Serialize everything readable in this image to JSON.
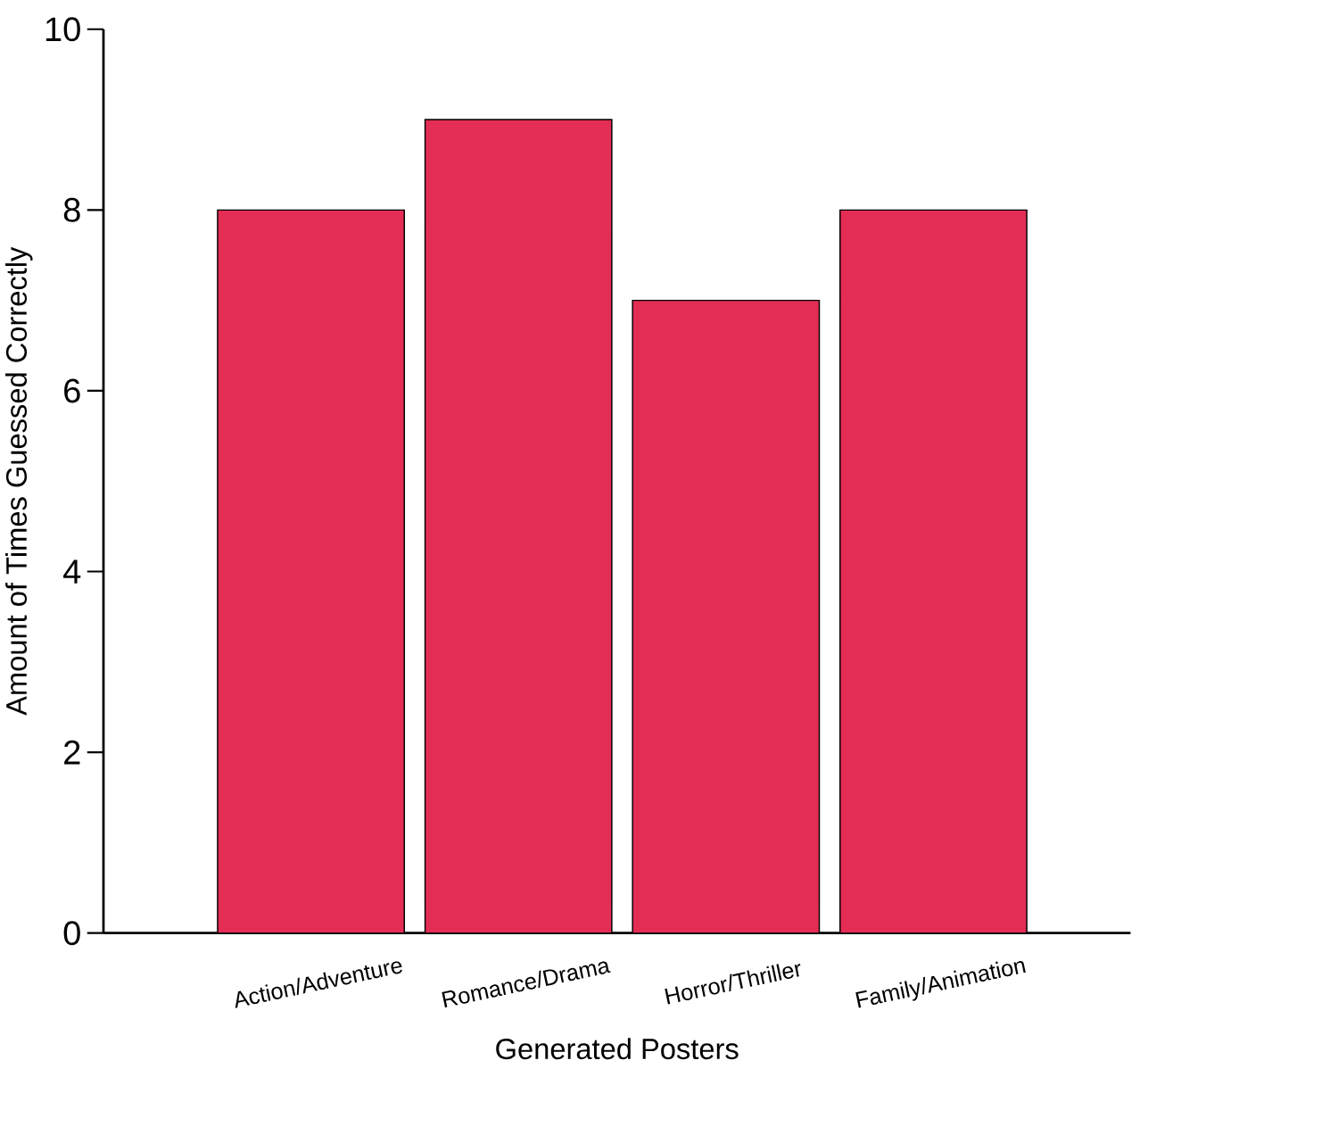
{
  "chart_data": {
    "type": "bar",
    "xlabel": "Generated Posters",
    "ylabel": "Amount of Times Guessed Correctly",
    "categories": [
      "Action/Adventure",
      "Romance/Drama",
      "Horror/Thriller",
      "Family/Animation"
    ],
    "values": [
      8,
      9,
      7,
      8
    ],
    "color": "#e32d55",
    "ylim": [
      0,
      10
    ],
    "yticks": [
      0,
      2,
      4,
      6,
      8,
      10
    ]
  }
}
